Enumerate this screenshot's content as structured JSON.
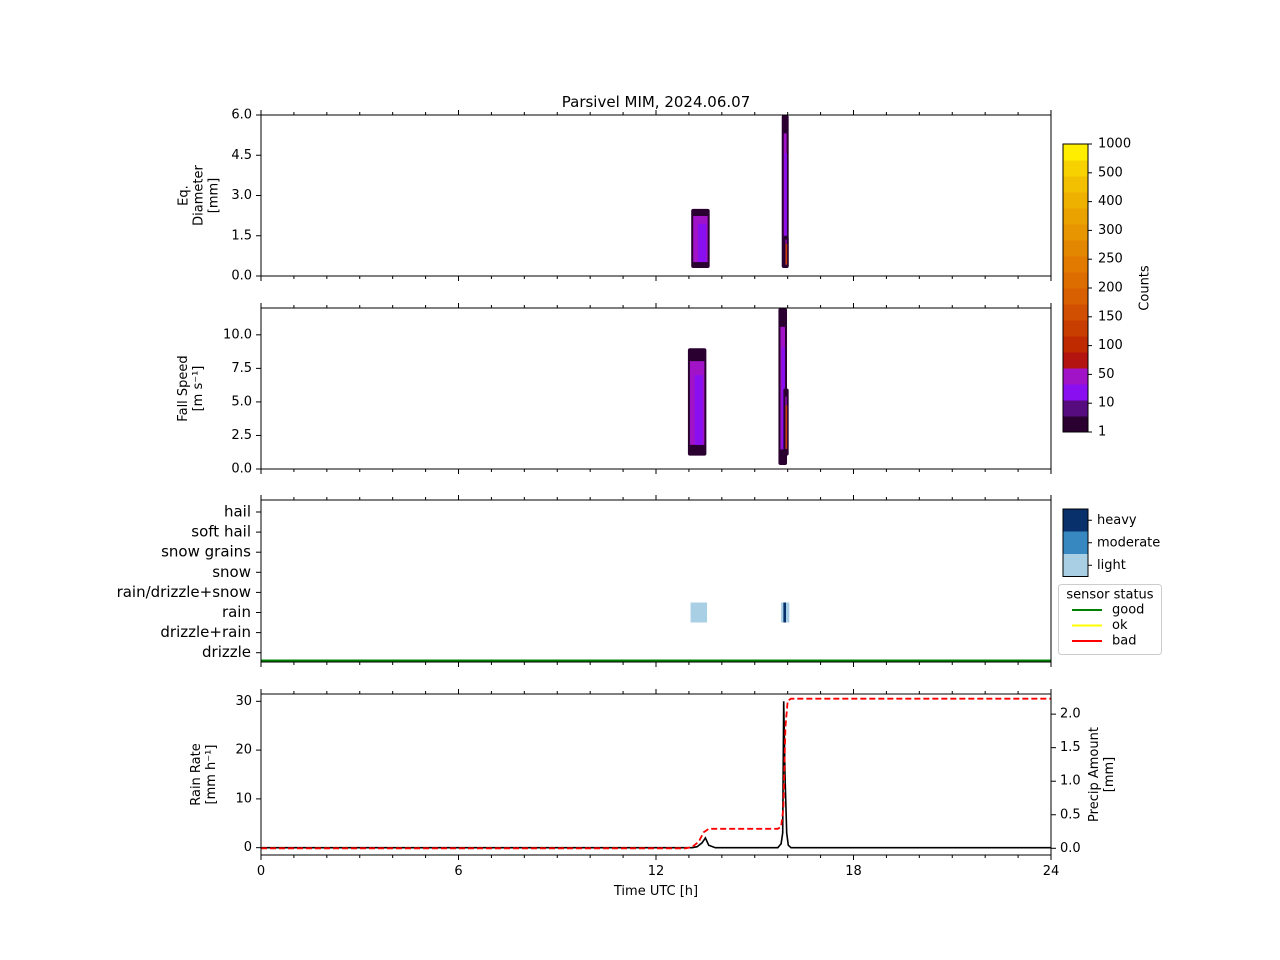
{
  "figure_title": "Parsivel MIM, 2024.06.07",
  "chart_data": [
    {
      "id": "diameter",
      "type": "heatmap",
      "ylabel_lines": [
        "Eq.",
        "Diameter",
        "[mm]"
      ],
      "ylim": [
        0,
        6
      ],
      "yticks": [
        "0.0",
        "1.5",
        "3.0",
        "4.5",
        "6.0"
      ],
      "xlim": [
        0,
        24
      ],
      "events": [
        {
          "t0": 13.1,
          "t1": 13.6,
          "v0": 0.3,
          "v1": 2.5,
          "level": "10"
        },
        {
          "t0": 15.85,
          "t1": 16.0,
          "v0": 0.3,
          "v1": 6.0,
          "level": "10"
        },
        {
          "t0": 15.9,
          "t1": 16.0,
          "v0": 0.3,
          "v1": 1.5,
          "level": "150"
        }
      ]
    },
    {
      "id": "fall_speed",
      "type": "heatmap",
      "ylabel_lines": [
        "Fall Speed",
        "[m s⁻¹]"
      ],
      "ylim": [
        0,
        12
      ],
      "yticks": [
        "0.0",
        "2.5",
        "5.0",
        "7.5",
        "10.0"
      ],
      "xlim": [
        0,
        24
      ],
      "events": [
        {
          "t0": 13.0,
          "t1": 13.5,
          "v0": 1.0,
          "v1": 9.0,
          "level": "10"
        },
        {
          "t0": 15.75,
          "t1": 15.95,
          "v0": 0.3,
          "v1": 12.0,
          "level": "10"
        },
        {
          "t0": 15.9,
          "t1": 16.0,
          "v0": 1.0,
          "v1": 6.0,
          "level": "150"
        }
      ]
    },
    {
      "id": "precip_type",
      "type": "heatmap",
      "categories": [
        "hail",
        "soft hail",
        "snow grains",
        "snow",
        "rain/drizzle+snow",
        "rain",
        "drizzle+rain",
        "drizzle"
      ],
      "cells": [
        {
          "category": "rain",
          "t0": 13.05,
          "t1": 13.55,
          "intensity": "light"
        },
        {
          "category": "rain",
          "t0": 15.8,
          "t1": 16.05,
          "intensity": "light"
        },
        {
          "category": "rain",
          "t0": 15.87,
          "t1": 15.95,
          "intensity": "heavy"
        }
      ],
      "sensor_status": {
        "state": "good",
        "t0": 0,
        "t1": 24
      }
    },
    {
      "id": "rain_rate",
      "type": "line",
      "ylabel_lines": [
        "Rain Rate",
        "[mm h⁻¹]"
      ],
      "ylim": [
        -1.5,
        31.5
      ],
      "yticks": [
        "0",
        "10",
        "20",
        "30"
      ],
      "y2label_lines": [
        "Precip Amount",
        "[mm]"
      ],
      "y2lim": [
        -0.1,
        2.3
      ],
      "y2ticks": [
        "0.0",
        "0.5",
        "1.0",
        "1.5",
        "2.0"
      ],
      "xlabel": "Time UTC [h]",
      "xlim": [
        0,
        24
      ],
      "xticks": [
        "0",
        "6",
        "12",
        "18",
        "24"
      ],
      "series": [
        {
          "axis": "left",
          "color": "#000000",
          "x": [
            0,
            13.1,
            13.25,
            13.4,
            13.5,
            13.6,
            13.8,
            15.7,
            15.8,
            15.85,
            15.88,
            15.92,
            15.97,
            16.02,
            16.1,
            24
          ],
          "y": [
            0,
            0,
            0.2,
            1.0,
            2.0,
            0.5,
            0,
            0,
            0.8,
            3.0,
            30.0,
            15.0,
            3.0,
            0.5,
            0,
            0
          ]
        },
        {
          "axis": "right",
          "color": "#ff0000",
          "style": "dashed",
          "x": [
            0,
            12.9,
            13.1,
            13.3,
            13.45,
            13.6,
            15.7,
            15.8,
            15.87,
            15.93,
            16.0,
            16.1,
            24
          ],
          "y": [
            0,
            0,
            0.02,
            0.1,
            0.24,
            0.29,
            0.29,
            0.32,
            0.6,
            1.8,
            2.2,
            2.23,
            2.23
          ]
        }
      ]
    }
  ],
  "colorbar_counts": {
    "label": "Counts",
    "ticks": [
      "1",
      "10",
      "50",
      "100",
      "150",
      "200",
      "250",
      "300",
      "400",
      "500",
      "1000"
    ],
    "colors": [
      "#2a0030",
      "#560b7f",
      "#8a0ff0",
      "#a013c6",
      "#b3140f",
      "#bf2a00",
      "#c83e00",
      "#d14f00",
      "#d86000",
      "#de6d00",
      "#e27a00",
      "#e48700",
      "#e79500",
      "#eaa200",
      "#eeb100",
      "#f2c000",
      "#f7d200",
      "#ffee00"
    ]
  },
  "colorbar_intensity": {
    "entries": [
      {
        "label": "heavy",
        "color": "#08306b"
      },
      {
        "label": "moderate",
        "color": "#3787c0"
      },
      {
        "label": "light",
        "color": "#a9cfe5"
      }
    ]
  },
  "legend_sensor": {
    "title": "sensor status",
    "entries": [
      {
        "label": "good",
        "color": "#008000"
      },
      {
        "label": "ok",
        "color": "#ffff00"
      },
      {
        "label": "bad",
        "color": "#ff0000"
      }
    ]
  }
}
